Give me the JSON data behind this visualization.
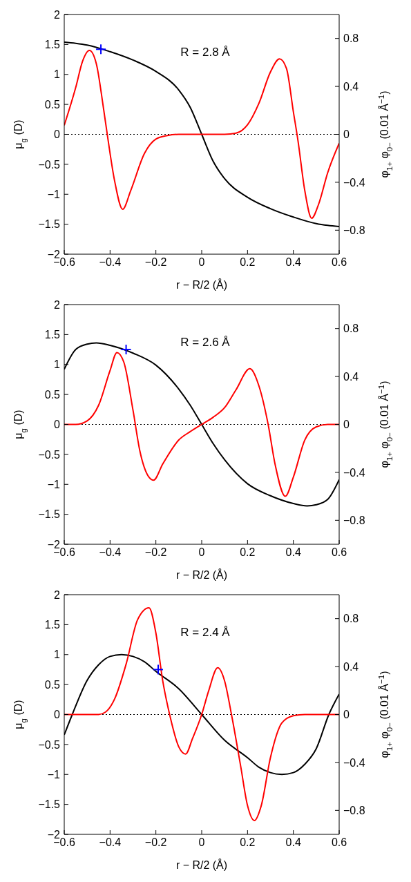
{
  "chart_data": [
    {
      "type": "line",
      "xlabel": "r − R/2 (Å)",
      "ylabel": "μ$_{g}$ (D)",
      "y2label": "φ$_{1+}$ φ$_{0−}$ (0.01 Å$^{−1}$)",
      "annotations": [
        "R = 2.8 Å"
      ],
      "xlim": [
        -0.6,
        0.6
      ],
      "xticks": [
        -0.6,
        -0.4,
        -0.2,
        0,
        0.2,
        0.4,
        0.6
      ],
      "ylim": [
        -2,
        2
      ],
      "yticks": [
        -2,
        -1.5,
        -1,
        -0.5,
        0,
        0.5,
        1,
        1.5,
        2
      ],
      "y2lim": [
        -1,
        1
      ],
      "y2ticks": [
        -0.8,
        -0.4,
        0,
        0.4,
        0.8
      ],
      "grid": false,
      "line_style": "solid",
      "ref_lines": [
        {
          "axis": "y",
          "value": 0,
          "color": "#000000",
          "line_style": "dotted"
        }
      ],
      "series": [
        {
          "color": "#000000",
          "marker": "none",
          "x": [
            -0.6,
            -0.55,
            -0.5,
            -0.4,
            -0.3,
            -0.2,
            -0.1,
            -0.05,
            0,
            0.05,
            0.1,
            0.2,
            0.3,
            0.4,
            0.5,
            0.55,
            0.6
          ],
          "values": [
            1.54,
            1.52,
            1.49,
            1.38,
            1.24,
            1.05,
            0.74,
            0.45,
            0,
            -0.45,
            -0.74,
            -1.05,
            -1.24,
            -1.38,
            -1.49,
            -1.52,
            -1.54
          ]
        },
        {
          "color": "#ff0000",
          "marker": "none",
          "axis": "y2",
          "x": [
            -0.6,
            -0.55,
            -0.52,
            -0.49,
            -0.46,
            -0.43,
            -0.41,
            -0.38,
            -0.345,
            -0.31,
            -0.25,
            -0.2,
            -0.15,
            -0.1,
            0,
            0.1,
            0.15,
            0.2,
            0.25,
            0.3,
            0.34,
            0.37,
            0.4,
            0.42,
            0.45,
            0.48,
            0.51,
            0.55,
            0.6
          ],
          "values": [
            0.075,
            0.39,
            0.61,
            0.7,
            0.59,
            0.235,
            -0.03,
            -0.39,
            -0.625,
            -0.47,
            -0.16,
            -0.04,
            -0.01,
            0,
            0,
            0,
            0.01,
            0.08,
            0.26,
            0.52,
            0.63,
            0.55,
            0.19,
            -0.05,
            -0.47,
            -0.7,
            -0.585,
            -0.32,
            -0.075
          ]
        },
        {
          "type": "scatter",
          "color": "#0000ff",
          "marker": "cross",
          "x": [
            -0.44
          ],
          "values": [
            1.42
          ]
        }
      ]
    },
    {
      "type": "line",
      "xlabel": "r − R/2 (Å)",
      "ylabel": "μ$_{g}$ (D)",
      "y2label": "φ$_{1+}$ φ$_{0−}$ (0.01 Å$^{−1}$)",
      "annotations": [
        "R = 2.6 Å"
      ],
      "xlim": [
        -0.6,
        0.6
      ],
      "xticks": [
        -0.6,
        -0.4,
        -0.2,
        0,
        0.2,
        0.4,
        0.6
      ],
      "ylim": [
        -2,
        2
      ],
      "yticks": [
        -2,
        -1.5,
        -1,
        -0.5,
        0,
        0.5,
        1,
        1.5,
        2
      ],
      "y2lim": [
        -1,
        1
      ],
      "y2ticks": [
        -0.8,
        -0.4,
        0,
        0.4,
        0.8
      ],
      "grid": false,
      "line_style": "solid",
      "ref_lines": [
        {
          "axis": "y",
          "value": 0,
          "color": "#000000",
          "line_style": "dotted"
        }
      ],
      "series": [
        {
          "color": "#000000",
          "marker": "none",
          "x": [
            -0.6,
            -0.55,
            -0.5,
            -0.46,
            -0.4,
            -0.3,
            -0.2,
            -0.1,
            -0.05,
            0,
            0.05,
            0.1,
            0.2,
            0.3,
            0.4,
            0.46,
            0.5,
            0.55,
            0.6
          ],
          "values": [
            0.92,
            1.25,
            1.34,
            1.36,
            1.32,
            1.19,
            0.99,
            0.59,
            0.32,
            0,
            -0.32,
            -0.59,
            -0.99,
            -1.19,
            -1.32,
            -1.36,
            -1.34,
            -1.25,
            -0.92
          ]
        },
        {
          "color": "#ff0000",
          "marker": "none",
          "axis": "y2",
          "x": [
            -0.6,
            -0.55,
            -0.5,
            -0.45,
            -0.4,
            -0.37,
            -0.34,
            -0.3,
            -0.27,
            -0.23,
            -0.21,
            -0.17,
            -0.1,
            -0.05,
            0,
            0.05,
            0.1,
            0.15,
            0.21,
            0.25,
            0.29,
            0.32,
            0.365,
            0.4,
            0.45,
            0.5,
            0.55,
            0.6
          ],
          "values": [
            0,
            0,
            0.03,
            0.16,
            0.45,
            0.6,
            0.52,
            0.12,
            -0.22,
            -0.44,
            -0.465,
            -0.33,
            -0.13,
            -0.06,
            0,
            0.06,
            0.14,
            0.29,
            0.465,
            0.32,
            0,
            -0.33,
            -0.6,
            -0.44,
            -0.13,
            -0.02,
            0,
            0
          ]
        },
        {
          "type": "scatter",
          "color": "#0000ff",
          "marker": "cross",
          "x": [
            -0.33
          ],
          "values": [
            1.25
          ]
        }
      ]
    },
    {
      "type": "line",
      "xlabel": "r − R/2 (Å)",
      "ylabel": "μ$_{g}$ (D)",
      "y2label": "φ$_{1+}$ φ$_{0−}$ (0.01 Å$^{−1}$)",
      "annotations": [
        "R = 2.4 Å"
      ],
      "xlim": [
        -0.6,
        0.6
      ],
      "xticks": [
        -0.6,
        -0.4,
        -0.2,
        0,
        0.2,
        0.4,
        0.6
      ],
      "ylim": [
        -2,
        2
      ],
      "yticks": [
        -2,
        -1.5,
        -1,
        -0.5,
        0,
        0.5,
        1,
        1.5,
        2
      ],
      "y2lim": [
        -1,
        1
      ],
      "y2ticks": [
        -0.8,
        -0.4,
        0,
        0.4,
        0.8
      ],
      "grid": false,
      "line_style": "solid",
      "ref_lines": [
        {
          "axis": "y",
          "value": 0,
          "color": "#000000",
          "line_style": "dotted"
        }
      ],
      "series": [
        {
          "color": "#000000",
          "marker": "none",
          "x": [
            -0.6,
            -0.565,
            -0.5,
            -0.45,
            -0.4,
            -0.35,
            -0.3,
            -0.25,
            -0.2,
            -0.1,
            0,
            0.1,
            0.2,
            0.25,
            0.3,
            0.35,
            0.4,
            0.45,
            0.5,
            0.555,
            0.6
          ],
          "values": [
            -0.34,
            0,
            0.57,
            0.83,
            0.97,
            1.0,
            0.97,
            0.88,
            0.72,
            0.43,
            0,
            -0.43,
            -0.72,
            -0.88,
            -0.97,
            -1.0,
            -0.97,
            -0.83,
            -0.57,
            0,
            0.34
          ]
        },
        {
          "color": "#ff0000",
          "marker": "none",
          "axis": "y2",
          "x": [
            -0.6,
            -0.45,
            -0.42,
            -0.38,
            -0.33,
            -0.28,
            -0.23,
            -0.2,
            -0.17,
            -0.14,
            -0.1,
            -0.07,
            -0.04,
            0,
            0.03,
            0.07,
            0.1,
            0.13,
            0.17,
            0.2,
            0.23,
            0.26,
            0.3,
            0.35,
            0.4,
            0.45,
            0.6
          ],
          "values": [
            0,
            0,
            0.02,
            0.13,
            0.42,
            0.79,
            0.89,
            0.68,
            0.28,
            0,
            -0.27,
            -0.33,
            -0.2,
            0,
            0.195,
            0.39,
            0.28,
            0,
            -0.43,
            -0.76,
            -0.885,
            -0.76,
            -0.36,
            -0.07,
            -0.01,
            0,
            0
          ]
        },
        {
          "type": "scatter",
          "color": "#0000ff",
          "marker": "cross",
          "x": [
            -0.19
          ],
          "values": [
            0.75
          ]
        }
      ]
    }
  ]
}
